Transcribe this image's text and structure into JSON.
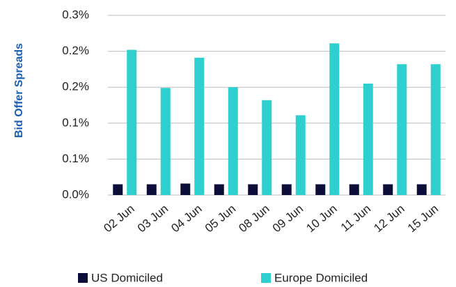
{
  "chart_data": {
    "type": "bar",
    "y_label": "Bid Offer Spreads",
    "categories": [
      "02 Jun",
      "03 Jun",
      "04 Jun",
      "05 Jun",
      "08 Jun",
      "09 Jun",
      "10 Jun",
      "11 Jun",
      "12 Jun",
      "15 Jun"
    ],
    "series": [
      {
        "name": "US Domiciled",
        "color": "#0d0d3a",
        "values": [
          0.015,
          0.015,
          0.016,
          0.015,
          0.015,
          0.015,
          0.015,
          0.015,
          0.015,
          0.015
        ]
      },
      {
        "name": "Europe Domiciled",
        "color": "#2ecfcf",
        "values": [
          0.202,
          0.149,
          0.191,
          0.15,
          0.132,
          0.111,
          0.211,
          0.155,
          0.182,
          0.182
        ]
      }
    ],
    "ylim": [
      0,
      0.25
    ],
    "yticks": [
      {
        "value": 0,
        "label": "0.0%"
      },
      {
        "value": 0.05,
        "label": "0.1%"
      },
      {
        "value": 0.1,
        "label": "0.1%"
      },
      {
        "value": 0.15,
        "label": "0.2%"
      },
      {
        "value": 0.2,
        "label": "0.2%"
      },
      {
        "value": 0.25,
        "label": "0.3%"
      }
    ],
    "grid": true
  }
}
